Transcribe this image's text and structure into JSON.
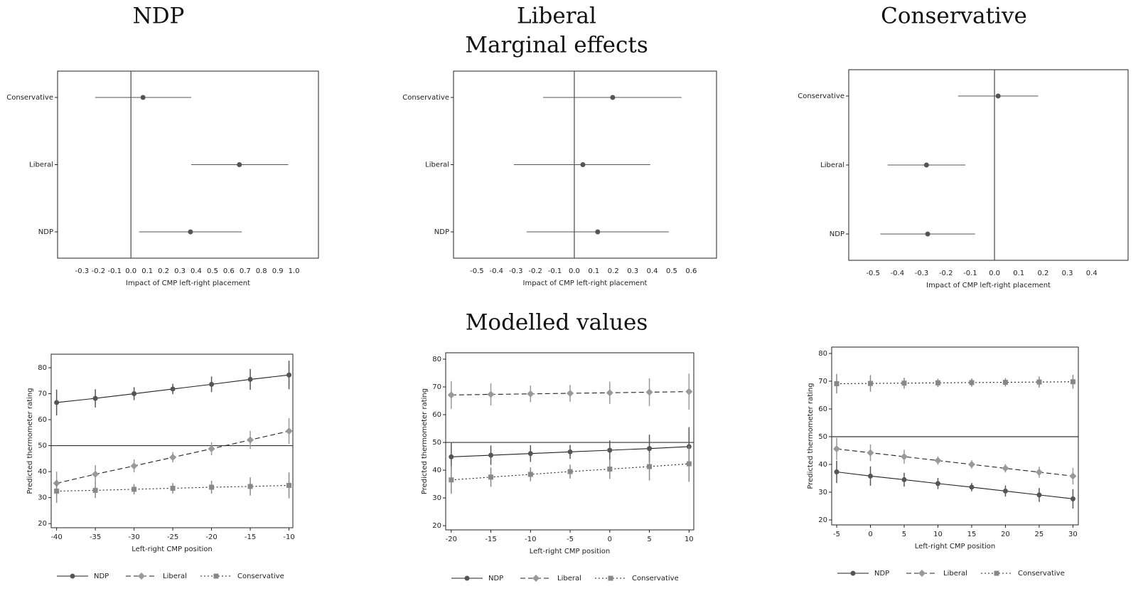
{
  "figure": {
    "column_titles": [
      "NDP",
      "Liberal",
      "Conservative"
    ],
    "row_titles": [
      "Marginal effects",
      "Modelled values"
    ]
  },
  "chart_data": [
    {
      "type": "coefplot",
      "xlabel": "Impact of CMP left-right placement",
      "categories": [
        "Conservative",
        "Liberal",
        "NDP"
      ],
      "values": [
        0.074,
        0.665,
        0.365
      ],
      "lower": [
        -0.22,
        0.37,
        0.05
      ],
      "upper": [
        0.37,
        0.965,
        0.68
      ],
      "color": "#555555",
      "xlim": [
        -0.45,
        1.15
      ],
      "xticks": [
        -0.3,
        -0.2,
        -0.1,
        {
          "value": 0,
          "label": "0.0"
        },
        0.1,
        0.2,
        0.3,
        0.4,
        0.5,
        0.6,
        0.7,
        0.8,
        0.9,
        {
          "value": 1,
          "label": "1.0"
        }
      ],
      "vline": 0
    },
    {
      "type": "coefplot",
      "xlabel": "Impact of CMP left-right placement",
      "categories": [
        "Conservative",
        "Liberal",
        "NDP"
      ],
      "values": [
        0.197,
        0.044,
        0.12
      ],
      "lower": [
        -0.16,
        -0.31,
        -0.245
      ],
      "upper": [
        0.55,
        0.39,
        0.485
      ],
      "color": "#555555",
      "xlim": [
        -0.62,
        0.73
      ],
      "xticks": [
        -0.5,
        -0.4,
        -0.3,
        -0.2,
        -0.1,
        {
          "value": 0,
          "label": "0.0"
        },
        0.1,
        0.2,
        0.3,
        0.4,
        0.5,
        0.6
      ],
      "vline": 0
    },
    {
      "type": "coefplot",
      "xlabel": "Impact of CMP left-right placement",
      "categories": [
        "Conservative",
        "Liberal",
        "NDP"
      ],
      "values": [
        0.015,
        -0.28,
        -0.275
      ],
      "lower": [
        -0.15,
        -0.44,
        -0.47
      ],
      "upper": [
        0.18,
        -0.12,
        -0.08
      ],
      "color": "#555555",
      "xlim": [
        -0.6,
        0.55
      ],
      "xticks": [
        -0.5,
        -0.4,
        -0.3,
        -0.2,
        -0.1,
        {
          "value": 0,
          "label": "0.0"
        },
        0.1,
        0.2,
        0.3,
        0.4
      ],
      "vline": 0
    },
    {
      "type": "line",
      "xlabel": "Left-right CMP position",
      "ylabel": "Predicted thermometer rating",
      "x": [
        -40,
        -35,
        -30,
        -25,
        -20,
        -15,
        -10
      ],
      "xlim": [
        -40.7,
        -9.5
      ],
      "xticks": [
        -40,
        -35,
        -30,
        -25,
        -20,
        -15,
        -10
      ],
      "ylim": [
        18.4,
        85.2
      ],
      "yticks": [
        20,
        30,
        40,
        50,
        60,
        70,
        80
      ],
      "hline": 50,
      "series": [
        {
          "name": "NDP",
          "color": "#555555",
          "marker": "circle",
          "dash": "solid",
          "values": [
            66.6,
            68.2,
            70,
            71.8,
            73.6,
            75.5,
            77.2
          ],
          "errors": [
            5,
            3.5,
            2.5,
            2,
            3,
            4,
            5.5
          ]
        },
        {
          "name": "Liberal",
          "color": "#999999",
          "marker": "diamond",
          "dash": "dashed",
          "values": [
            35.5,
            39,
            42.2,
            45.5,
            48.8,
            52.2,
            55.6
          ],
          "errors": [
            4.5,
            3.5,
            2.5,
            2,
            2.5,
            3.5,
            5
          ]
        },
        {
          "name": "Conservative",
          "color": "#888888",
          "marker": "square",
          "dash": "dotted",
          "values": [
            32.5,
            32.8,
            33.2,
            33.6,
            34,
            34.3,
            34.7
          ],
          "errors": [
            4.5,
            3,
            2,
            2,
            2.5,
            3.5,
            5
          ]
        }
      ]
    },
    {
      "type": "line",
      "xlabel": "Left-right CMP position",
      "ylabel": "Predicted thermometer rating",
      "x": [
        -20,
        -15,
        -10,
        -5,
        0,
        5,
        10
      ],
      "xlim": [
        -20.7,
        10.6
      ],
      "xticks": [
        -20,
        -15,
        -10,
        -5,
        0,
        5,
        10
      ],
      "ylim": [
        18.5,
        82.3
      ],
      "yticks": [
        20,
        30,
        40,
        50,
        60,
        70,
        80
      ],
      "hline": 50,
      "series": [
        {
          "name": "NDP",
          "color": "#555555",
          "marker": "circle",
          "dash": "solid",
          "values": [
            44.8,
            45.4,
            46,
            46.6,
            47.2,
            47.8,
            48.5
          ],
          "errors": [
            5,
            3.5,
            3,
            2.5,
            3.5,
            5,
            7
          ]
        },
        {
          "name": "Liberal",
          "color": "#999999",
          "marker": "diamond",
          "dash": "dashed",
          "values": [
            67.1,
            67.3,
            67.5,
            67.7,
            67.9,
            68.1,
            68.3
          ],
          "errors": [
            5,
            4,
            3,
            3,
            4,
            5,
            6.5
          ]
        },
        {
          "name": "Conservative",
          "color": "#888888",
          "marker": "square",
          "dash": "dotted",
          "values": [
            36.5,
            37.5,
            38.5,
            39.5,
            40.4,
            41.3,
            42.3
          ],
          "errors": [
            5,
            3.5,
            2.5,
            2.5,
            3.5,
            5,
            6.5
          ]
        }
      ]
    },
    {
      "type": "line",
      "xlabel": "Left-right CMP position",
      "ylabel": "Predicted thermometer rating",
      "x": [
        -5,
        0,
        5,
        10,
        15,
        20,
        25,
        30
      ],
      "xlim": [
        -5.74,
        30.8
      ],
      "xticks": [
        -5,
        0,
        5,
        10,
        15,
        20,
        25,
        30
      ],
      "ylim": [
        18.2,
        82.3
      ],
      "yticks": [
        20,
        30,
        40,
        50,
        60,
        70,
        80
      ],
      "hline": 50,
      "series": [
        {
          "name": "NDP",
          "color": "#555555",
          "marker": "circle",
          "dash": "solid",
          "values": [
            37.3,
            35.8,
            34.5,
            33.1,
            31.8,
            30.4,
            29,
            27.6
          ],
          "errors": [
            4,
            3.5,
            2.5,
            2,
            1.5,
            2,
            2.5,
            3.5
          ]
        },
        {
          "name": "Liberal",
          "color": "#999999",
          "marker": "diamond",
          "dash": "dashed",
          "values": [
            45.6,
            44.2,
            42.8,
            41.4,
            40,
            38.6,
            37.2,
            35.8
          ],
          "errors": [
            4,
            3,
            2.5,
            1.5,
            1.5,
            1.5,
            2,
            3
          ]
        },
        {
          "name": "Conservative",
          "color": "#888888",
          "marker": "square",
          "dash": "dotted",
          "values": [
            69.1,
            69.2,
            69.3,
            69.4,
            69.5,
            69.6,
            69.7,
            69.8
          ],
          "errors": [
            3.5,
            3,
            2,
            1.5,
            1.5,
            1.5,
            2,
            2.5
          ]
        }
      ]
    }
  ]
}
